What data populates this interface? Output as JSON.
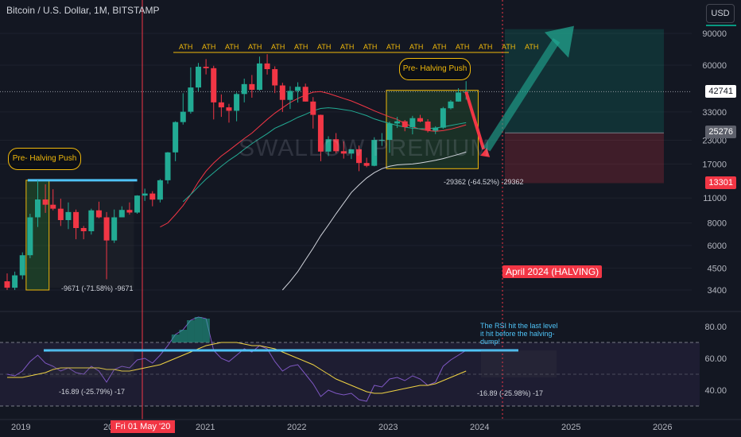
{
  "title": "Bitcoin / U.S. Dollar, 1M, BITSTAMP",
  "watermark": "SWALLOW PREMIUM",
  "currency": "USD",
  "halving_label": "April 2024 (HALVING)",
  "pre_halving_label": "Pre- Halving Push",
  "ath_label": "ATH",
  "rsi_note": "The RSI hit the last level it hit before the halving-dump!",
  "price_tags": {
    "current": "42741",
    "mid": "25276",
    "low": "13301"
  },
  "measure_labels": {
    "m2019": "-9671 (-71.58%) -9671",
    "m2023": "-29362 (-64.52%) -29362",
    "rsi1": "-16.89 (-25.79%) -17",
    "rsi2": "-16.89 (-25.98%) -17"
  },
  "x_axis": {
    "labels": [
      "2019",
      "20",
      "2021",
      "2022",
      "2023",
      "2024",
      "2025",
      "2026"
    ],
    "selected": "Fri 01 May '20"
  },
  "chart_data": [
    {
      "type": "line",
      "pane": "price",
      "log_scale": true,
      "y_ticks": [
        90000,
        60000,
        33000,
        23000,
        17000,
        11000,
        8000,
        6000,
        4500,
        3400
      ],
      "y_tick_labels": [
        "90000",
        "60000",
        "33000",
        "23000",
        "17000",
        "11000",
        "8000",
        "6000",
        "4500",
        "3400"
      ],
      "candles": [
        {
          "o": 3800,
          "h": 4200,
          "l": 3400,
          "c": 3500
        },
        {
          "o": 3500,
          "h": 4300,
          "l": 3400,
          "c": 4100
        },
        {
          "o": 4100,
          "h": 5500,
          "l": 3900,
          "c": 5300
        },
        {
          "o": 5300,
          "h": 9000,
          "l": 5100,
          "c": 8600
        },
        {
          "o": 8600,
          "h": 13800,
          "l": 7600,
          "c": 10800
        },
        {
          "o": 10800,
          "h": 13100,
          "l": 9100,
          "c": 10100
        },
        {
          "o": 10100,
          "h": 12300,
          "l": 9400,
          "c": 9600
        },
        {
          "o": 9600,
          "h": 10900,
          "l": 7700,
          "c": 8300
        },
        {
          "o": 8300,
          "h": 10400,
          "l": 7400,
          "c": 9200
        },
        {
          "o": 9200,
          "h": 9500,
          "l": 6500,
          "c": 7500
        },
        {
          "o": 7500,
          "h": 7700,
          "l": 6500,
          "c": 7200
        },
        {
          "o": 7200,
          "h": 9600,
          "l": 6900,
          "c": 9400
        },
        {
          "o": 9400,
          "h": 10500,
          "l": 8500,
          "c": 8600
        },
        {
          "o": 8600,
          "h": 9200,
          "l": 3900,
          "c": 6400
        },
        {
          "o": 6400,
          "h": 9500,
          "l": 6200,
          "c": 8600
        },
        {
          "o": 8600,
          "h": 9900,
          "l": 8600,
          "c": 9450
        },
        {
          "o": 9450,
          "h": 10400,
          "l": 8900,
          "c": 9140
        },
        {
          "o": 9140,
          "h": 11400,
          "l": 9000,
          "c": 11350
        },
        {
          "o": 11350,
          "h": 12400,
          "l": 10600,
          "c": 11650
        },
        {
          "o": 11650,
          "h": 12000,
          "l": 9900,
          "c": 10780
        },
        {
          "o": 10780,
          "h": 14000,
          "l": 10400,
          "c": 13800
        },
        {
          "o": 13800,
          "h": 19800,
          "l": 13200,
          "c": 19700
        },
        {
          "o": 19700,
          "h": 29300,
          "l": 17600,
          "c": 29000
        },
        {
          "o": 29000,
          "h": 41900,
          "l": 28100,
          "c": 33100
        },
        {
          "o": 33100,
          "h": 58300,
          "l": 32300,
          "c": 45100
        },
        {
          "o": 45100,
          "h": 61700,
          "l": 43000,
          "c": 58800
        },
        {
          "o": 58800,
          "h": 64800,
          "l": 53300,
          "c": 57700
        },
        {
          "o": 57700,
          "h": 59500,
          "l": 30000,
          "c": 37300
        },
        {
          "o": 37300,
          "h": 41300,
          "l": 31000,
          "c": 35000
        },
        {
          "o": 35000,
          "h": 36600,
          "l": 28800,
          "c": 33500
        },
        {
          "o": 33500,
          "h": 42300,
          "l": 29300,
          "c": 41500
        },
        {
          "o": 41500,
          "h": 50500,
          "l": 37300,
          "c": 47100
        },
        {
          "o": 47100,
          "h": 52900,
          "l": 39600,
          "c": 43800
        },
        {
          "o": 43800,
          "h": 66900,
          "l": 43300,
          "c": 61300
        },
        {
          "o": 61300,
          "h": 69000,
          "l": 53200,
          "c": 57000
        },
        {
          "o": 57000,
          "h": 59100,
          "l": 42000,
          "c": 46300
        },
        {
          "o": 46300,
          "h": 47900,
          "l": 33000,
          "c": 38500
        },
        {
          "o": 38500,
          "h": 45800,
          "l": 34300,
          "c": 43200
        },
        {
          "o": 43200,
          "h": 48200,
          "l": 37200,
          "c": 45500
        },
        {
          "o": 45500,
          "h": 47400,
          "l": 37700,
          "c": 37700
        },
        {
          "o": 37700,
          "h": 39900,
          "l": 26700,
          "c": 31800
        },
        {
          "o": 31800,
          "h": 31900,
          "l": 17600,
          "c": 19900
        },
        {
          "o": 19900,
          "h": 24200,
          "l": 18800,
          "c": 23300
        },
        {
          "o": 23300,
          "h": 25200,
          "l": 19500,
          "c": 20000
        },
        {
          "o": 20000,
          "h": 22700,
          "l": 18200,
          "c": 19400
        },
        {
          "o": 19400,
          "h": 20500,
          "l": 18100,
          "c": 20500
        },
        {
          "o": 20500,
          "h": 21500,
          "l": 15500,
          "c": 17200
        },
        {
          "o": 17200,
          "h": 18400,
          "l": 16300,
          "c": 16600
        },
        {
          "o": 16600,
          "h": 23900,
          "l": 16500,
          "c": 23100
        },
        {
          "o": 23100,
          "h": 25200,
          "l": 21400,
          "c": 23100
        },
        {
          "o": 23100,
          "h": 29200,
          "l": 19600,
          "c": 28500
        },
        {
          "o": 28500,
          "h": 31000,
          "l": 26900,
          "c": 29300
        },
        {
          "o": 29300,
          "h": 29800,
          "l": 25800,
          "c": 27200
        },
        {
          "o": 27200,
          "h": 31400,
          "l": 24800,
          "c": 30500
        },
        {
          "o": 30500,
          "h": 31800,
          "l": 28900,
          "c": 29200
        },
        {
          "o": 29200,
          "h": 30100,
          "l": 25400,
          "c": 26000
        },
        {
          "o": 26000,
          "h": 27500,
          "l": 24900,
          "c": 27000
        },
        {
          "o": 27000,
          "h": 35200,
          "l": 26600,
          "c": 34600
        },
        {
          "o": 34600,
          "h": 38400,
          "l": 34100,
          "c": 37700
        },
        {
          "o": 37700,
          "h": 44700,
          "l": 37600,
          "c": 42300
        },
        {
          "o": 42300,
          "h": 48900,
          "l": 38600,
          "c": 42741
        }
      ],
      "ma_red": [
        null,
        null,
        null,
        null,
        null,
        null,
        null,
        null,
        null,
        null,
        null,
        null,
        null,
        null,
        null,
        null,
        null,
        null,
        null,
        null,
        7600,
        8000,
        8900,
        10000,
        11500,
        13500,
        15500,
        17200,
        18800,
        20200,
        21800,
        23500,
        25200,
        27500,
        30000,
        32500,
        34800,
        37200,
        39200,
        41000,
        42500,
        42800,
        41800,
        40500,
        39200,
        38000,
        36500,
        35000,
        33500,
        32200,
        31000,
        30000,
        28500,
        27300,
        26500,
        26000,
        25800,
        26000,
        26500,
        27200,
        28000
      ],
      "ma_green": [
        null,
        null,
        null,
        null,
        null,
        null,
        null,
        null,
        null,
        null,
        null,
        null,
        null,
        null,
        null,
        null,
        null,
        null,
        null,
        null,
        null,
        null,
        null,
        10500,
        11500,
        12700,
        14000,
        15200,
        16500,
        17800,
        19000,
        20500,
        22000,
        23500,
        25000,
        26800,
        28000,
        29300,
        30800,
        32000,
        33500,
        34500,
        34800,
        34500,
        34000,
        33500,
        32500,
        31500,
        30200,
        29300,
        28500,
        27800,
        27200,
        26800,
        26600,
        26700,
        26900,
        27300,
        27800,
        28300,
        28800
      ],
      "ma_white": [
        null,
        null,
        null,
        null,
        null,
        null,
        null,
        null,
        null,
        null,
        null,
        null,
        null,
        null,
        null,
        null,
        null,
        null,
        null,
        null,
        null,
        null,
        null,
        null,
        null,
        null,
        null,
        null,
        null,
        null,
        null,
        null,
        null,
        null,
        null,
        null,
        3400,
        3800,
        4300,
        5000,
        5800,
        6800,
        7800,
        9000,
        10300,
        11800,
        13000,
        14200,
        15200,
        16000,
        16500,
        16800,
        16900,
        17000,
        17200,
        17500,
        17800,
        18200,
        18700,
        19200,
        19800
      ],
      "projection": {
        "from": 42741,
        "dip_to": 20500,
        "target": 95000
      }
    },
    {
      "type": "line",
      "pane": "rsi",
      "y_ticks": [
        80,
        60,
        40
      ],
      "y_tick_labels": [
        "80.00",
        "60.00",
        "40.00"
      ],
      "rsi": [
        50,
        49,
        52,
        58,
        62,
        57,
        55,
        52,
        54,
        51,
        50,
        55,
        52,
        45,
        53,
        55,
        54,
        59,
        60,
        57,
        62,
        68,
        75,
        78,
        84,
        86,
        85,
        65,
        60,
        58,
        62,
        66,
        64,
        68,
        66,
        58,
        52,
        55,
        56,
        50,
        44,
        36,
        40,
        38,
        37,
        38,
        34,
        33,
        43,
        42,
        47,
        48,
        46,
        49,
        47,
        43,
        45,
        55,
        59,
        62,
        65
      ],
      "rsi_ma": [
        48,
        48,
        48,
        49,
        50,
        51,
        53,
        54,
        54,
        54,
        54,
        54,
        54,
        53,
        53,
        52,
        52,
        53,
        54,
        55,
        56,
        58,
        60,
        62,
        64,
        66,
        68,
        69,
        70,
        70,
        70,
        69,
        68,
        68,
        67,
        66,
        64,
        62,
        60,
        58,
        56,
        53,
        50,
        47,
        45,
        43,
        41,
        39,
        38,
        38,
        39,
        40,
        41,
        42,
        43,
        43,
        44,
        46,
        48,
        50,
        52
      ],
      "threshold": 65
    }
  ]
}
